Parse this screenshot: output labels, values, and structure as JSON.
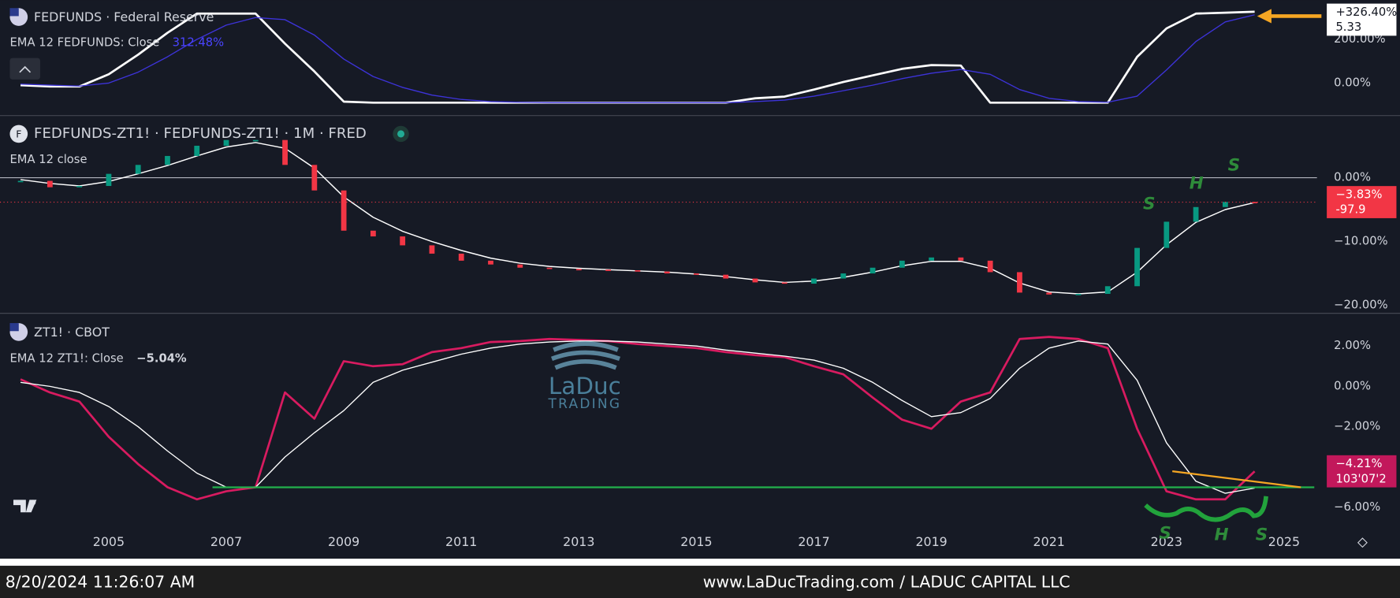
{
  "chart_data": [
    {
      "type": "line",
      "title": "FEDFUNDS · Federal Reserve",
      "x": [
        2003.5,
        2004,
        2004.5,
        2005,
        2005.5,
        2006,
        2006.5,
        2007,
        2007.5,
        2008,
        2008.5,
        2009,
        2009.5,
        2010,
        2010.5,
        2011,
        2011.5,
        2012,
        2012.5,
        2013,
        2013.5,
        2014,
        2014.5,
        2015,
        2015.5,
        2016,
        2016.5,
        2017,
        2017.5,
        2018,
        2018.5,
        2019,
        2019.5,
        2020,
        2020.5,
        2021,
        2021.5,
        2022,
        2022.5,
        2023,
        2023.5,
        2024,
        2024.5
      ],
      "xlim": [
        2003.15,
        2025.56
      ],
      "ylim": [
        -143,
        380
      ],
      "yticks": [
        {
          "value": 200,
          "label": "200.00%"
        },
        {
          "value": 0,
          "label": "0.00%"
        }
      ],
      "series": [
        {
          "color": "#ffffff",
          "values": [
            -10,
            -16,
            -16,
            40,
            130,
            230,
            318,
            318,
            318,
            180,
            53,
            -85,
            -90,
            -90,
            -90,
            -90,
            -90,
            -90,
            -90,
            -90,
            -90,
            -90,
            -90,
            -90,
            -90,
            -70,
            -62,
            -30,
            5,
            35,
            65,
            82,
            80,
            -90,
            -90,
            -90,
            -90,
            -90,
            120,
            250,
            318,
            322,
            326.4
          ]
        },
        {
          "name": "EMA 12 FEDFUNDS: Close",
          "color": "#3d33d9",
          "values": [
            -5,
            -10,
            -14,
            0,
            50,
            120,
            200,
            265,
            300,
            290,
            220,
            110,
            30,
            -20,
            -55,
            -75,
            -85,
            -88,
            -90,
            -90,
            -90,
            -90,
            -90,
            -90,
            -90,
            -85,
            -78,
            -60,
            -35,
            -10,
            20,
            45,
            62,
            40,
            -30,
            -70,
            -85,
            -88,
            -60,
            60,
            190,
            280,
            312.48
          ]
        }
      ],
      "legend_value": "312.48%",
      "last_label": {
        "value": 326.4,
        "label": "+326.40%"
      },
      "last_price": 5.33
    },
    {
      "type": "candle",
      "title": "FEDFUNDS-ZT1! · FEDFUNDS-ZT1! · 1M · FRED",
      "x": [
        2003.5,
        2004,
        2004.5,
        2005,
        2005.5,
        2006,
        2006.5,
        2007,
        2007.5,
        2008,
        2008.5,
        2009,
        2009.5,
        2010,
        2010.5,
        2011,
        2011.5,
        2012,
        2012.5,
        2013,
        2013.5,
        2014,
        2014.5,
        2015,
        2015.5,
        2016,
        2016.5,
        2017,
        2017.5,
        2018,
        2018.5,
        2019,
        2019.5,
        2020,
        2020.5,
        2021,
        2021.5,
        2022,
        2022.5,
        2023,
        2023.5,
        2024,
        2024.5
      ],
      "xlim": [
        2003.15,
        2025.56
      ],
      "ylim": [
        -21.1,
        9.65
      ],
      "yticks": [
        {
          "value": 0,
          "label": "0.00%"
        },
        {
          "value": -10,
          "label": "−10.00%"
        },
        {
          "value": -20,
          "label": "−20.00%"
        }
      ],
      "zero_line": true,
      "series": [
        {
          "up_color": "#089981",
          "down_color": "#f23645",
          "values": [
            -0.5,
            -1.5,
            -1.3,
            0.6,
            2.0,
            3.4,
            5.0,
            5.9,
            5.9,
            2.0,
            -2.0,
            -8.3,
            -9.2,
            -10.6,
            -11.9,
            -13.0,
            -13.6,
            -14.1,
            -14.3,
            -14.4,
            -14.5,
            -14.7,
            -15.0,
            -15.2,
            -15.8,
            -16.4,
            -16.6,
            -15.8,
            -15.0,
            -14.1,
            -13.0,
            -12.5,
            -13.0,
            -14.8,
            -18.0,
            -18.3,
            -18.2,
            -17.0,
            -11.0,
            -6.9,
            -4.6,
            -3.8,
            -3.83
          ]
        },
        {
          "name": "EMA 12 close",
          "color": "#ffffff",
          "values": [
            -0.3,
            -0.9,
            -1.3,
            -0.6,
            0.6,
            1.9,
            3.4,
            4.8,
            5.5,
            4.6,
            1.5,
            -3.0,
            -6.2,
            -8.4,
            -10.0,
            -11.4,
            -12.6,
            -13.4,
            -13.9,
            -14.2,
            -14.4,
            -14.6,
            -14.8,
            -15.1,
            -15.5,
            -16.0,
            -16.4,
            -16.2,
            -15.6,
            -14.8,
            -13.8,
            -13.1,
            -13.1,
            -14.2,
            -16.5,
            -17.9,
            -18.2,
            -17.9,
            -14.8,
            -10.5,
            -7.0,
            -5.0,
            -3.9
          ]
        }
      ],
      "last_label": {
        "value": -3.83,
        "label": "−3.83%"
      },
      "last_price": -97.9,
      "annotations": [
        "S",
        "H",
        "S"
      ]
    },
    {
      "type": "line",
      "title": "ZT1! · CBOT",
      "x": [
        2003.5,
        2004,
        2004.5,
        2005,
        2005.5,
        2006,
        2006.5,
        2007,
        2007.5,
        2008,
        2008.5,
        2009,
        2009.5,
        2010,
        2010.5,
        2011,
        2011.5,
        2012,
        2012.5,
        2013,
        2013.5,
        2014,
        2014.5,
        2015,
        2015.5,
        2016,
        2016.5,
        2017,
        2017.5,
        2018,
        2018.5,
        2019,
        2019.5,
        2020,
        2020.5,
        2021,
        2021.5,
        2022,
        2022.5,
        2023,
        2023.5,
        2024,
        2024.5
      ],
      "xlim": [
        2003.15,
        2025.56
      ],
      "ylim": [
        -7.17,
        3.58
      ],
      "xticks": [
        2005,
        2007,
        2009,
        2011,
        2013,
        2015,
        2017,
        2019,
        2021,
        2023,
        2025
      ],
      "yticks": [
        {
          "value": 2,
          "label": "2.00%"
        },
        {
          "value": 0,
          "label": "0.00%"
        },
        {
          "value": -2,
          "label": "−2.00%"
        },
        {
          "value": -6,
          "label": "−6.00%"
        }
      ],
      "series": [
        {
          "color": "#d81b60",
          "values": [
            0.35,
            -0.3,
            -0.75,
            -2.5,
            -3.85,
            -5.0,
            -5.6,
            -5.2,
            -5.0,
            -0.3,
            -1.6,
            1.25,
            1.0,
            1.1,
            1.7,
            1.9,
            2.2,
            2.25,
            2.35,
            2.3,
            2.25,
            2.1,
            2.0,
            1.9,
            1.7,
            1.55,
            1.45,
            1.0,
            0.6,
            -0.55,
            -1.65,
            -2.1,
            -0.75,
            -0.3,
            2.35,
            2.45,
            2.35,
            1.9,
            -2.1,
            -5.2,
            -5.6,
            -5.6,
            -4.21
          ]
        },
        {
          "name": "EMA 12 ZT1!: Close",
          "color": "#ffffff",
          "values": [
            0.2,
            0,
            -0.3,
            -1.0,
            -2.0,
            -3.2,
            -4.3,
            -5.0,
            -5.0,
            -3.5,
            -2.3,
            -1.2,
            0.2,
            0.8,
            1.2,
            1.6,
            1.9,
            2.1,
            2.2,
            2.25,
            2.25,
            2.2,
            2.1,
            2.0,
            1.8,
            1.65,
            1.5,
            1.3,
            0.9,
            0.2,
            -0.7,
            -1.5,
            -1.3,
            -0.6,
            0.9,
            1.9,
            2.25,
            2.1,
            0.3,
            -2.8,
            -4.7,
            -5.3,
            -5.04
          ]
        }
      ],
      "legend_value": "−5.04%",
      "last_label": {
        "value": -4.21,
        "label": "−4.21%"
      },
      "last_price": "103'07'2",
      "annotations": [
        "S",
        "H",
        "S"
      ]
    }
  ],
  "watermark": {
    "title": "LaDuc",
    "subtitle": "TRADING"
  },
  "footer": {
    "timestamp": "8/20/2024 11:26:07 AM",
    "source": "www.LaDucTrading.com / LADUC CAPITAL LLC"
  }
}
